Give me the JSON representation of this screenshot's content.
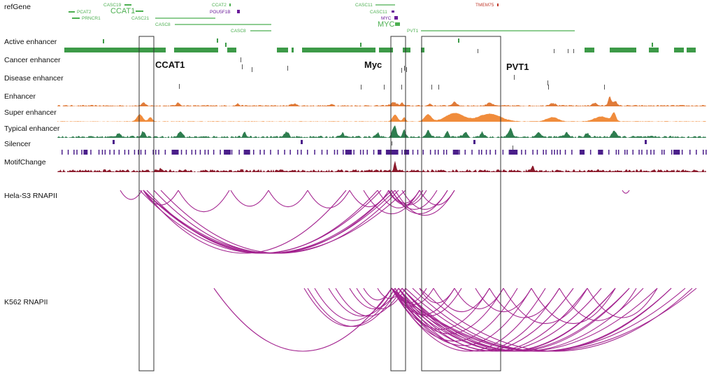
{
  "track_labels": {
    "refgene": "refGene",
    "active": "Active enhancer",
    "cancer": "Cancer enhancer",
    "disease": "Disease enhancer",
    "enhancer": "Enhancer",
    "super": "Super enhancer",
    "typical": "Typical enhancer",
    "silencer": "Silencer",
    "motif": "MotifChange",
    "hela": "Hela-S3 RNAPII",
    "k562": "K562 RNAPII"
  },
  "genes": [
    {
      "id": "pcat2",
      "label": "PCAT2",
      "color": "#4caf50"
    },
    {
      "id": "prncr1",
      "label": "PRNCR1",
      "color": "#4caf50"
    },
    {
      "id": "casc19",
      "label": "CASC19",
      "color": "#4caf50"
    },
    {
      "id": "ccat1",
      "label": "CCAT1",
      "color": "#4caf50"
    },
    {
      "id": "casc21",
      "label": "CASC21",
      "color": "#4caf50"
    },
    {
      "id": "casc8a",
      "label": "CASC8",
      "color": "#4caf50"
    },
    {
      "id": "ccat2",
      "label": "CCAT2",
      "color": "#4caf50"
    },
    {
      "id": "pou5f1b",
      "label": "POU5F1B",
      "color": "#6a1b9a"
    },
    {
      "id": "casc8b",
      "label": "CASC8",
      "color": "#4caf50"
    },
    {
      "id": "casc11a",
      "label": "CASC11",
      "color": "#4caf50"
    },
    {
      "id": "casc11b",
      "label": "CASC11",
      "color": "#4caf50"
    },
    {
      "id": "myc_small",
      "label": "MYC",
      "color": "#6a1b9a"
    },
    {
      "id": "myc",
      "label": "MYC",
      "color": "#4caf50"
    },
    {
      "id": "pvt1",
      "label": "PVT1",
      "color": "#4caf50"
    },
    {
      "id": "tmem75",
      "label": "TMEM75",
      "color": "#c0392b"
    }
  ],
  "highlights": [
    {
      "id": "ccat1",
      "label": "CCAT1"
    },
    {
      "id": "myc",
      "label": "Myc"
    },
    {
      "id": "pvt1",
      "label": "PVT1"
    }
  ],
  "colors": {
    "active": "#3d9a48",
    "enhancer": "#e07b39",
    "super": "#f08c3c",
    "typical": "#2e7d4f",
    "silencer": "#4b1f8a",
    "motif": "#8b1a2b",
    "loops": "#a3238f",
    "box": "#333333",
    "thin_marks": "#555555"
  }
}
